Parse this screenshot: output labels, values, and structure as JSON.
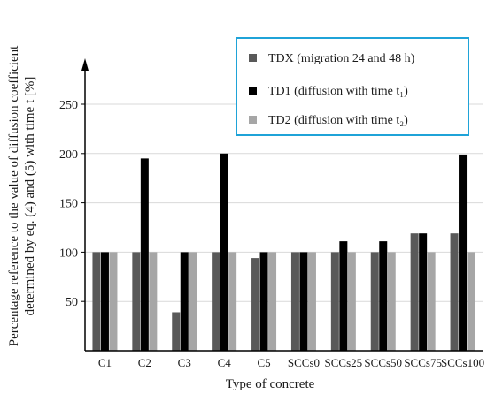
{
  "chart_data": {
    "type": "bar",
    "xlabel": "Type of concrete",
    "ylabel_line1": "Percentage reference to the value of diffusion coefficient",
    "ylabel_line2": "determined by eq. (4) and (5) with time t   [%]",
    "ylim": [
      0,
      250
    ],
    "yticks": [
      50,
      100,
      150,
      200,
      250
    ],
    "grid": true,
    "legend_position": "top-right",
    "categories": [
      "C1",
      "C2",
      "C3",
      "C4",
      "C5",
      "SCCs0",
      "SCCs25",
      "SCCs50",
      "SCCs75",
      "SCCs100"
    ],
    "series": [
      {
        "name": "TDX (migration 24 and 48 h)",
        "color": "#595959",
        "values": [
          100,
          100,
          39,
          100,
          94,
          100,
          100,
          100,
          119,
          119
        ]
      },
      {
        "name": "TD1 (diffusion with time t₁)",
        "color": "#000000",
        "values": [
          100,
          195,
          100,
          200,
          100,
          100,
          111,
          111,
          119,
          199
        ]
      },
      {
        "name": "TD2 (diffusion with time t₂)",
        "color": "#a6a6a6",
        "values": [
          100,
          100,
          100,
          100,
          100,
          100,
          100,
          100,
          100,
          100
        ]
      }
    ],
    "legend_border_color": "#1fa3d8"
  }
}
